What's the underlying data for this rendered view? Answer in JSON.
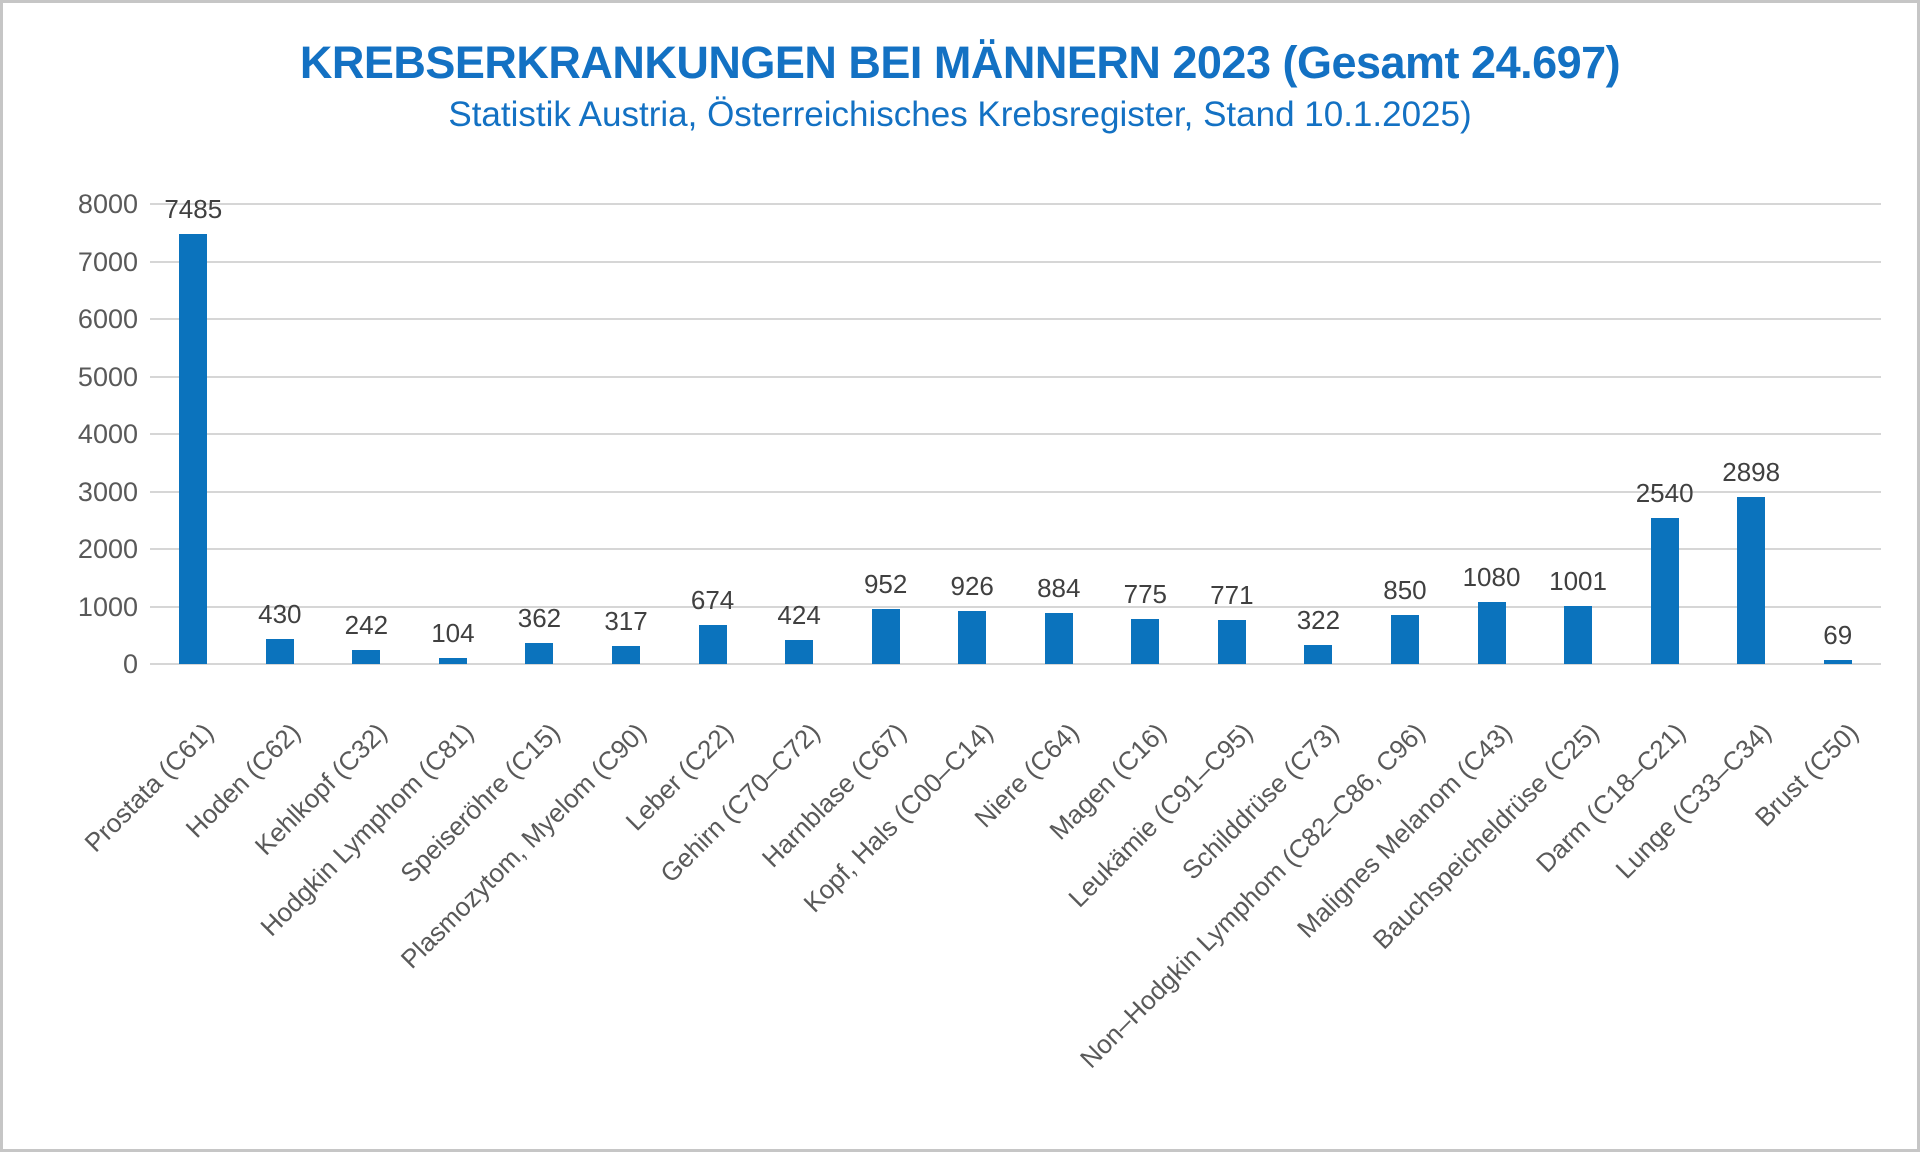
{
  "chart_data": {
    "type": "bar",
    "title": "KREBSERKRANKUNGEN BEI MÄNNERN 2023 (Gesamt 24.697)",
    "subtitle": "Statistik Austria, Österreichisches Krebsregister, Stand 10.1.2025)",
    "categories": [
      "Prostata (C61)",
      "Hoden (C62)",
      "Kehlkopf (C32)",
      "Hodgkin Lymphom (C81)",
      "Speiseröhre (C15)",
      "Plasmozytom, Myelom (C90)",
      "Leber (C22)",
      "Gehirn (C70–C72)",
      "Harnblase (C67)",
      "Kopf, Hals (C00–C14)",
      "Niere (C64)",
      "Magen (C16)",
      "Leukämie (C91–C95)",
      "Schilddrüse (C73)",
      "Non–Hodgkin Lymphom (C82–C86, C96)",
      "Malignes Melanom (C43)",
      "Bauchspeicheldrüse (C25)",
      "Darm (C18–C21)",
      "Lunge (C33–C34)",
      "Brust (C50)"
    ],
    "values": [
      7485,
      430,
      242,
      104,
      362,
      317,
      674,
      424,
      952,
      926,
      884,
      775,
      771,
      322,
      850,
      1080,
      1001,
      2540,
      2898,
      69
    ],
    "xlabel": "",
    "ylabel": "",
    "ylim": [
      0,
      8000
    ],
    "ytick_step": 1000,
    "grid": true,
    "legend": "none",
    "colors": {
      "bar": "#0b73bd",
      "title": "#1371c3",
      "subtitle": "#1371c3",
      "value_label": "#404040",
      "axis_label": "#595959",
      "gridline": "#d6d6d6",
      "frame_border": "#c6c6c6",
      "background": "#ffffff"
    }
  }
}
